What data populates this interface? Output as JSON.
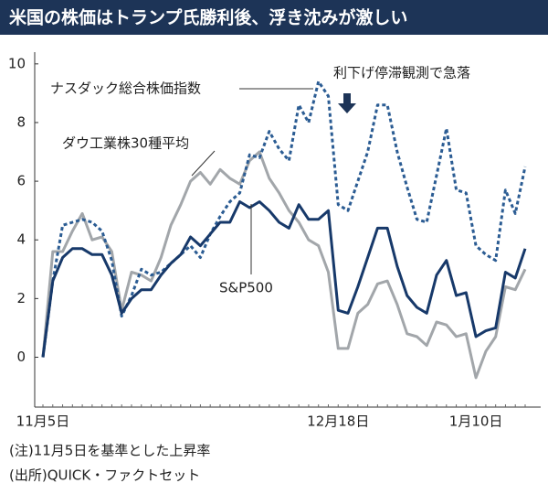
{
  "chart_data": {
    "type": "line",
    "title": "米国の株価はトランプ氏勝利後、浮き沈みが激しい",
    "categories": [
      "11月5日",
      null,
      null,
      null,
      null,
      null,
      null,
      null,
      null,
      null,
      null,
      null,
      null,
      null,
      null,
      null,
      null,
      null,
      null,
      null,
      null,
      null,
      null,
      null,
      null,
      null,
      null,
      null,
      null,
      null,
      "12月18日",
      null,
      null,
      null,
      null,
      null,
      null,
      null,
      null,
      null,
      null,
      null,
      null,
      null,
      "1月10日",
      null,
      null,
      null,
      null,
      null
    ],
    "series": [
      {
        "name": "ナスダック総合株価指数",
        "color": "#2b5c93",
        "dashed": true,
        "values": [
          0,
          2.6,
          4.5,
          4.6,
          4.7,
          4.6,
          4.3,
          3.3,
          1.4,
          2.1,
          3.0,
          2.8,
          2.9,
          3.2,
          3.5,
          3.8,
          3.4,
          4.2,
          4.8,
          5.3,
          5.6,
          6.9,
          6.8,
          7.7,
          7.1,
          6.7,
          8.6,
          8.0,
          9.4,
          8.9,
          5.2,
          5.0,
          6.0,
          7.0,
          8.6,
          8.6,
          7.0,
          5.8,
          4.7,
          4.6,
          6.2,
          7.8,
          5.7,
          5.6,
          3.8,
          3.5,
          3.3,
          5.7,
          4.9,
          6.5
        ]
      },
      {
        "name": "ダウ工業株30種平均",
        "color": "#a2a6aa",
        "dashed": false,
        "values": [
          0,
          3.6,
          3.6,
          4.3,
          4.9,
          4.0,
          4.1,
          3.6,
          1.6,
          2.9,
          2.8,
          2.6,
          3.4,
          4.5,
          5.2,
          6.0,
          6.3,
          5.9,
          6.4,
          6.1,
          5.9,
          6.7,
          7.0,
          6.1,
          5.6,
          5.0,
          4.6,
          4.0,
          3.8,
          2.9,
          0.3,
          0.3,
          1.5,
          1.8,
          2.5,
          2.6,
          1.8,
          0.8,
          0.7,
          0.4,
          1.2,
          1.1,
          0.7,
          0.8,
          -0.7,
          0.2,
          0.7,
          2.4,
          2.3,
          3.0
        ]
      },
      {
        "name": "S&P500",
        "color": "#17396a",
        "dashed": false,
        "values": [
          0,
          2.6,
          3.4,
          3.7,
          3.7,
          3.5,
          3.5,
          2.8,
          1.5,
          2.0,
          2.3,
          2.3,
          2.8,
          3.2,
          3.5,
          4.1,
          3.8,
          4.2,
          4.6,
          4.6,
          5.3,
          5.1,
          5.3,
          5.0,
          4.6,
          4.4,
          5.2,
          4.7,
          4.7,
          5.0,
          1.6,
          1.5,
          2.4,
          3.4,
          4.4,
          4.4,
          3.1,
          2.1,
          1.7,
          1.5,
          2.8,
          3.3,
          2.1,
          2.2,
          0.7,
          0.9,
          1.0,
          2.9,
          2.7,
          3.7
        ]
      }
    ],
    "annotation": "利下げ停滞観測で急落",
    "notes": [
      "(注)11月5日を基準とした上昇率",
      "(出所)QUICK・ファクトセット"
    ],
    "ylim": [
      -1.7,
      10.4
    ],
    "yticks": [
      0,
      2,
      4,
      6,
      8,
      10
    ],
    "grid": false
  }
}
